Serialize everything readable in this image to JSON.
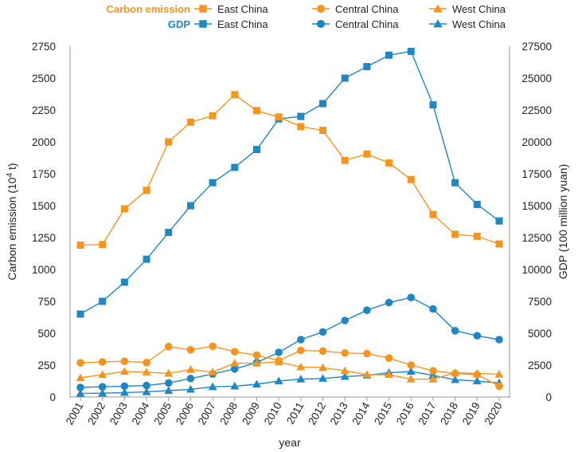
{
  "chart_data": {
    "type": "line",
    "x": [
      "2001",
      "2002",
      "2003",
      "2004",
      "2005",
      "2006",
      "2007",
      "2008",
      "2009",
      "2010",
      "2011",
      "2012",
      "2013",
      "2014",
      "2015",
      "2016",
      "2017",
      "2018",
      "2019",
      "2020"
    ],
    "xlabel": "year",
    "ylabel_left_main": "Carbon emission (10",
    "ylabel_left_sup": "4",
    "ylabel_left_tail": " t)",
    "ylabel_right": "GDP (100 million yuan)",
    "ylim_left": [
      0,
      2750
    ],
    "ylim_right": [
      0,
      27500
    ],
    "yticks_left": [
      "0",
      "250",
      "500",
      "750",
      "1000",
      "1250",
      "1500",
      "1750",
      "2000",
      "2250",
      "2500",
      "2750"
    ],
    "yticks_right": [
      "0",
      "2500",
      "5000",
      "7500",
      "10000",
      "12500",
      "15000",
      "17500",
      "20000",
      "22500",
      "25000",
      "27500"
    ],
    "colors": {
      "carbon": "#F7941D",
      "gdp": "#1E87C4",
      "axis_text": "#222222",
      "axis_line": "#999999"
    },
    "legend": {
      "carbon_label": "Carbon emission",
      "gdp_label": "GDP",
      "entries": [
        "East China",
        "Central China",
        "West China"
      ]
    },
    "series": [
      {
        "name": "Carbon emission East China",
        "group": "carbon",
        "axis": "left",
        "marker": "square",
        "values": [
          1190,
          1195,
          1475,
          1620,
          2000,
          2155,
          2205,
          2370,
          2245,
          2195,
          2120,
          2090,
          1855,
          1905,
          1835,
          1705,
          1430,
          1275,
          1260,
          1200
        ]
      },
      {
        "name": "Carbon emission Central China",
        "group": "carbon",
        "axis": "left",
        "marker": "circle",
        "values": [
          268,
          275,
          280,
          270,
          395,
          370,
          398,
          355,
          328,
          285,
          365,
          360,
          345,
          340,
          305,
          250,
          205,
          185,
          175,
          85
        ]
      },
      {
        "name": "Carbon emission West China",
        "group": "carbon",
        "axis": "left",
        "marker": "triangle",
        "values": [
          150,
          175,
          200,
          195,
          185,
          215,
          195,
          265,
          265,
          275,
          235,
          230,
          205,
          175,
          175,
          140,
          140,
          190,
          185,
          178
        ]
      },
      {
        "name": "GDP East China",
        "group": "gdp",
        "axis": "right",
        "marker": "square",
        "values": [
          6500,
          7500,
          9000,
          10800,
          12900,
          15000,
          16800,
          18000,
          19400,
          21800,
          22000,
          23000,
          25000,
          25900,
          26800,
          27100,
          22900,
          16800,
          15100,
          13800
        ]
      },
      {
        "name": "GDP Central China",
        "group": "gdp",
        "axis": "right",
        "marker": "circle",
        "values": [
          750,
          800,
          850,
          900,
          1100,
          1450,
          1800,
          2200,
          2700,
          3500,
          4500,
          5100,
          6000,
          6800,
          7400,
          7800,
          6900,
          5200,
          4800,
          4500
        ]
      },
      {
        "name": "GDP West China",
        "group": "gdp",
        "axis": "right",
        "marker": "triangle",
        "values": [
          280,
          300,
          350,
          400,
          500,
          600,
          800,
          850,
          1000,
          1250,
          1400,
          1450,
          1600,
          1700,
          1900,
          2000,
          1700,
          1350,
          1250,
          1100
        ]
      }
    ]
  }
}
